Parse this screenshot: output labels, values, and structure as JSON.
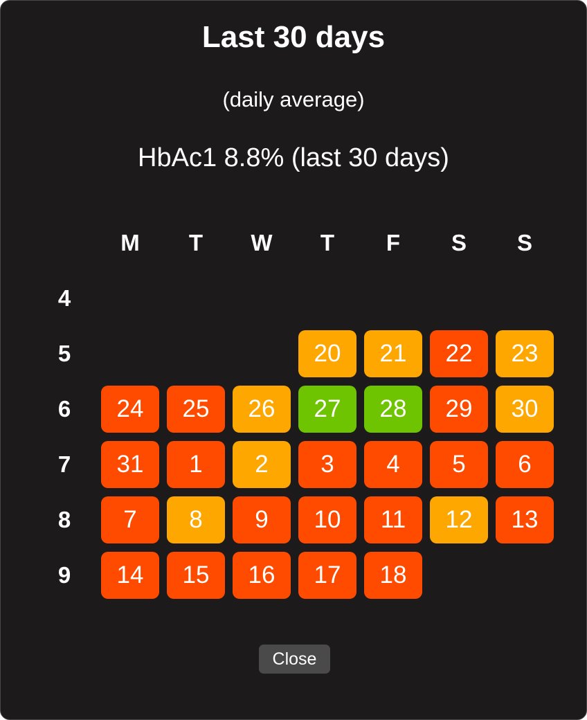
{
  "dialog": {
    "title": "Last 30 days",
    "subtitle": "(daily average)",
    "hba1c": "HbAc1 8.8% (last 30 days)",
    "close_label": "Close"
  },
  "calendar": {
    "weekdays": [
      "M",
      "T",
      "W",
      "T",
      "F",
      "S",
      "S"
    ],
    "weeks": [
      {
        "label": "4",
        "days": [
          null,
          null,
          null,
          null,
          null,
          null,
          null
        ]
      },
      {
        "label": "5",
        "days": [
          null,
          null,
          null,
          {
            "day": "20",
            "status": "orange"
          },
          {
            "day": "21",
            "status": "orange"
          },
          {
            "day": "22",
            "status": "red"
          },
          {
            "day": "23",
            "status": "orange"
          }
        ]
      },
      {
        "label": "6",
        "days": [
          {
            "day": "24",
            "status": "red"
          },
          {
            "day": "25",
            "status": "red"
          },
          {
            "day": "26",
            "status": "orange"
          },
          {
            "day": "27",
            "status": "green"
          },
          {
            "day": "28",
            "status": "green"
          },
          {
            "day": "29",
            "status": "red"
          },
          {
            "day": "30",
            "status": "orange"
          }
        ]
      },
      {
        "label": "7",
        "days": [
          {
            "day": "31",
            "status": "red"
          },
          {
            "day": "1",
            "status": "red"
          },
          {
            "day": "2",
            "status": "orange"
          },
          {
            "day": "3",
            "status": "red"
          },
          {
            "day": "4",
            "status": "red"
          },
          {
            "day": "5",
            "status": "red"
          },
          {
            "day": "6",
            "status": "red"
          }
        ]
      },
      {
        "label": "8",
        "days": [
          {
            "day": "7",
            "status": "red"
          },
          {
            "day": "8",
            "status": "orange"
          },
          {
            "day": "9",
            "status": "red"
          },
          {
            "day": "10",
            "status": "red"
          },
          {
            "day": "11",
            "status": "red"
          },
          {
            "day": "12",
            "status": "orange"
          },
          {
            "day": "13",
            "status": "red"
          }
        ]
      },
      {
        "label": "9",
        "days": [
          {
            "day": "14",
            "status": "red"
          },
          {
            "day": "15",
            "status": "red"
          },
          {
            "day": "16",
            "status": "red"
          },
          {
            "day": "17",
            "status": "red"
          },
          {
            "day": "18",
            "status": "red"
          },
          null,
          null
        ]
      }
    ]
  },
  "colors": {
    "red": "#fe4b00",
    "orange": "#fea700",
    "green": "#6ec400",
    "background": "#1c1a1b"
  }
}
